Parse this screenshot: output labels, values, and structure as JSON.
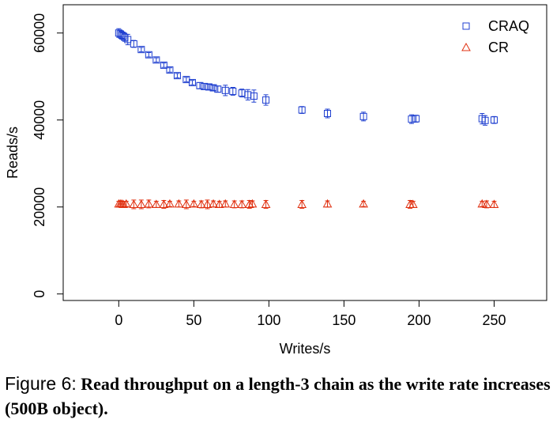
{
  "chart_data": {
    "type": "scatter",
    "xlabel": "Writes/s",
    "ylabel": "Reads/s",
    "xlim": [
      -37,
      285
    ],
    "ylim": [
      -1500,
      66500
    ],
    "x_ticks": [
      0,
      50,
      100,
      150,
      200,
      250
    ],
    "y_ticks": [
      0,
      20000,
      40000,
      60000
    ],
    "legend_position": "top-right",
    "series": [
      {
        "name": "CRAQ",
        "marker": "square",
        "color": "#2040d0",
        "points": [
          {
            "x": 0,
            "y": 60000,
            "err": 1000
          },
          {
            "x": 1,
            "y": 59800,
            "err": 800
          },
          {
            "x": 2,
            "y": 59500,
            "err": 900
          },
          {
            "x": 3,
            "y": 59300,
            "err": 800
          },
          {
            "x": 4,
            "y": 59000,
            "err": 900
          },
          {
            "x": 6,
            "y": 58500,
            "err": 1200
          },
          {
            "x": 10,
            "y": 57500,
            "err": 800
          },
          {
            "x": 15,
            "y": 56200,
            "err": 500
          },
          {
            "x": 20,
            "y": 55000,
            "err": 500
          },
          {
            "x": 25,
            "y": 53800,
            "err": 500
          },
          {
            "x": 30,
            "y": 52600,
            "err": 500
          },
          {
            "x": 34,
            "y": 51500,
            "err": 500
          },
          {
            "x": 39,
            "y": 50200,
            "err": 500
          },
          {
            "x": 45,
            "y": 49300,
            "err": 500
          },
          {
            "x": 49,
            "y": 48600,
            "err": 500
          },
          {
            "x": 54,
            "y": 47900,
            "err": 700
          },
          {
            "x": 57,
            "y": 47700,
            "err": 700
          },
          {
            "x": 60,
            "y": 47600,
            "err": 600
          },
          {
            "x": 63,
            "y": 47400,
            "err": 600
          },
          {
            "x": 66,
            "y": 47100,
            "err": 700
          },
          {
            "x": 71,
            "y": 46800,
            "err": 1200
          },
          {
            "x": 76,
            "y": 46600,
            "err": 900
          },
          {
            "x": 82,
            "y": 46200,
            "err": 900
          },
          {
            "x": 86,
            "y": 45800,
            "err": 1200
          },
          {
            "x": 90,
            "y": 45500,
            "err": 1400
          },
          {
            "x": 98,
            "y": 44600,
            "err": 1200
          },
          {
            "x": 122,
            "y": 42300,
            "err": 800
          },
          {
            "x": 139,
            "y": 41500,
            "err": 1000
          },
          {
            "x": 163,
            "y": 40800,
            "err": 1000
          },
          {
            "x": 195,
            "y": 40200,
            "err": 1000
          },
          {
            "x": 198,
            "y": 40300,
            "err": 800
          },
          {
            "x": 242,
            "y": 40300,
            "err": 1200
          },
          {
            "x": 244,
            "y": 39900,
            "err": 1100
          },
          {
            "x": 250,
            "y": 40000,
            "err": 800
          }
        ]
      },
      {
        "name": "CR",
        "marker": "triangle",
        "color": "#e03010",
        "points": [
          {
            "x": 0,
            "y": 20700,
            "err": 600
          },
          {
            "x": 1,
            "y": 20700,
            "err": 600
          },
          {
            "x": 2,
            "y": 20700,
            "err": 600
          },
          {
            "x": 3,
            "y": 20600,
            "err": 600
          },
          {
            "x": 5,
            "y": 20700,
            "err": 600
          },
          {
            "x": 10,
            "y": 20600,
            "err": 1000
          },
          {
            "x": 15,
            "y": 20600,
            "err": 1000
          },
          {
            "x": 20,
            "y": 20700,
            "err": 900
          },
          {
            "x": 25,
            "y": 20600,
            "err": 700
          },
          {
            "x": 30,
            "y": 20600,
            "err": 900
          },
          {
            "x": 34,
            "y": 20700,
            "err": 600
          },
          {
            "x": 40,
            "y": 20700,
            "err": 700
          },
          {
            "x": 45,
            "y": 20600,
            "err": 1000
          },
          {
            "x": 50,
            "y": 20700,
            "err": 600
          },
          {
            "x": 55,
            "y": 20600,
            "err": 800
          },
          {
            "x": 59,
            "y": 20600,
            "err": 1000
          },
          {
            "x": 63,
            "y": 20700,
            "err": 700
          },
          {
            "x": 67,
            "y": 20600,
            "err": 700
          },
          {
            "x": 71,
            "y": 20700,
            "err": 700
          },
          {
            "x": 77,
            "y": 20600,
            "err": 800
          },
          {
            "x": 82,
            "y": 20600,
            "err": 800
          },
          {
            "x": 87,
            "y": 20600,
            "err": 900
          },
          {
            "x": 89,
            "y": 20700,
            "err": 700
          },
          {
            "x": 98,
            "y": 20600,
            "err": 900
          },
          {
            "x": 122,
            "y": 20600,
            "err": 900
          },
          {
            "x": 139,
            "y": 20700,
            "err": 700
          },
          {
            "x": 163,
            "y": 20700,
            "err": 600
          },
          {
            "x": 194,
            "y": 20600,
            "err": 900
          },
          {
            "x": 196,
            "y": 20600,
            "err": 700
          },
          {
            "x": 242,
            "y": 20700,
            "err": 600
          },
          {
            "x": 245,
            "y": 20600,
            "err": 800
          },
          {
            "x": 250,
            "y": 20600,
            "err": 700
          }
        ]
      }
    ]
  },
  "caption": {
    "label": "Figure 6:",
    "text": "Read throughput on a length-3 chain as the write rate increases (500B object)."
  }
}
